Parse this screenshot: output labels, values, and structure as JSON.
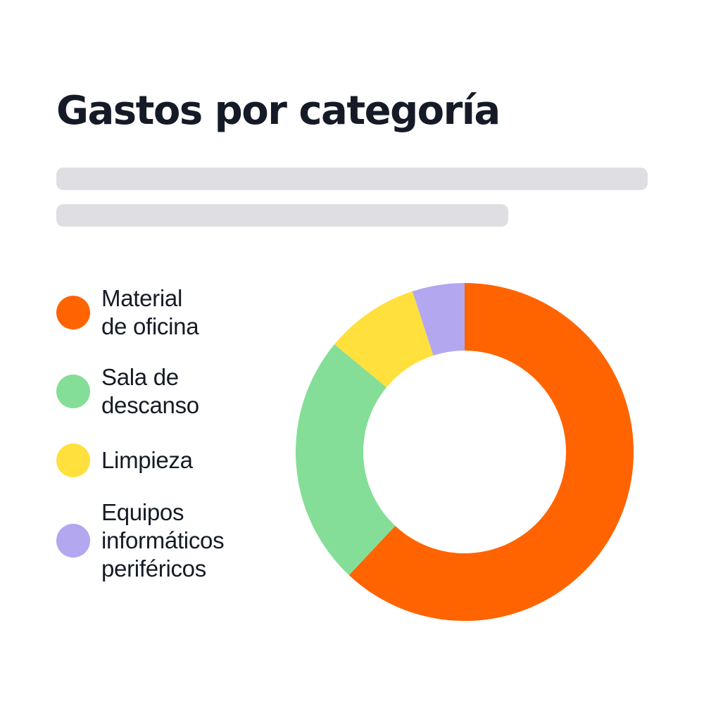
{
  "chart_data": {
    "type": "pie",
    "style": "donut",
    "title": "Gastos por categoría",
    "categories": [
      "Material\nde oficina",
      "Sala de\ndescanso",
      "Limpieza",
      "Equipos\ninformáticos\nperiféricos"
    ],
    "values": [
      62,
      24,
      9,
      5
    ],
    "colors": [
      "#ff6400",
      "#84de97",
      "#ffe03c",
      "#b3a7ef"
    ],
    "legend": "left"
  }
}
